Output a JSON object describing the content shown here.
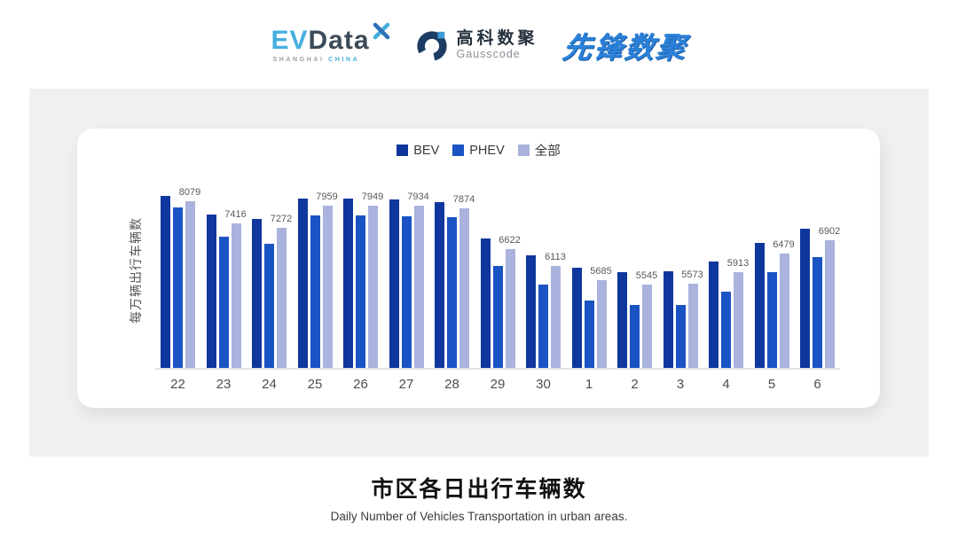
{
  "header": {
    "evdata": {
      "ev": "EV",
      "data": "Data",
      "sub_left": "SHANGHAI",
      "sub_right": "CHINA"
    },
    "gausscode": {
      "cn": "高科数聚",
      "en": "Gausscode"
    },
    "xianfeng": {
      "text": "先锋数聚"
    }
  },
  "chart_data": {
    "type": "bar",
    "title": "市区各日出行车辆数",
    "subtitle": "Daily Number of Vehicles Transportation in urban areas.",
    "ylabel": "每万辆出行车辆数",
    "categories": [
      "22",
      "23",
      "24",
      "25",
      "26",
      "27",
      "28",
      "29",
      "30",
      "1",
      "2",
      "3",
      "4",
      "5",
      "6"
    ],
    "series": [
      {
        "name": "BEV",
        "color": "#10379E",
        "values": [
          8240,
          7670,
          7545,
          8165,
          8150,
          8145,
          8055,
          6935,
          6445,
          6055,
          5925,
          5945,
          6235,
          6810,
          7235
        ]
      },
      {
        "name": "PHEV",
        "color": "#1A53C4",
        "values": [
          7900,
          6990,
          6780,
          7645,
          7645,
          7620,
          7585,
          6100,
          5535,
          5050,
          4925,
          4925,
          5325,
          5925,
          6370
        ]
      },
      {
        "name": "全部",
        "color": "#A9B3DD",
        "values": [
          8079,
          7416,
          7272,
          7959,
          7949,
          7934,
          7874,
          6622,
          6113,
          5685,
          5545,
          5573,
          5913,
          6479,
          6902
        ]
      }
    ],
    "value_labels": [
      8079,
      7416,
      7272,
      7959,
      7949,
      7934,
      7874,
      6622,
      6113,
      5685,
      5545,
      5573,
      5913,
      6479,
      6902
    ],
    "value_labels_series": "全部",
    "ylim": [
      3000,
      9000
    ],
    "legend_position": "top",
    "grid": false,
    "axis_baseline_color": "#e2e2e6",
    "value_label_color": "#595959"
  }
}
